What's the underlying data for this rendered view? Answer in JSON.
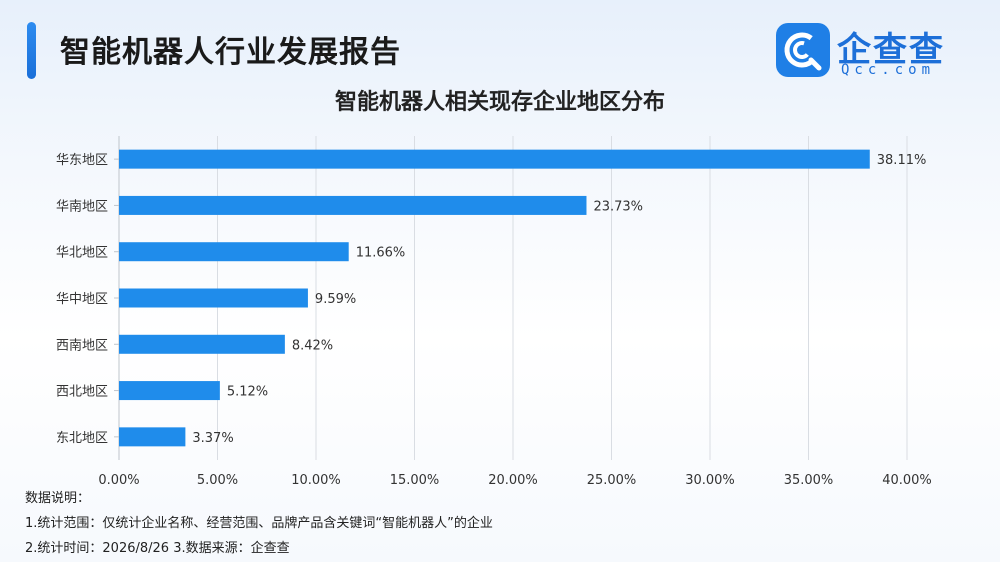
{
  "header": {
    "title": "智能机器人行业发展报告"
  },
  "logo": {
    "name": "企查查",
    "domain": "Qcc.com"
  },
  "chart_data": {
    "type": "bar",
    "orientation": "horizontal",
    "title": "智能机器人相关现存企业地区分布",
    "categories": [
      "华东地区",
      "华南地区",
      "华北地区",
      "华中地区",
      "西南地区",
      "西北地区",
      "东北地区"
    ],
    "values": [
      38.11,
      23.73,
      11.66,
      9.59,
      8.42,
      5.12,
      3.37
    ],
    "value_labels": [
      "38.11%",
      "23.73%",
      "11.66%",
      "9.59%",
      "8.42%",
      "5.12%",
      "3.37%"
    ],
    "xlim": [
      0,
      40
    ],
    "x_ticks": [
      0,
      5,
      10,
      15,
      20,
      25,
      30,
      35,
      40
    ],
    "x_tick_labels": [
      "0.00%",
      "5.00%",
      "10.00%",
      "15.00%",
      "20.00%",
      "25.00%",
      "30.00%",
      "35.00%",
      "40.00%"
    ],
    "grid": true,
    "bar_color": "#1f8ceb"
  },
  "notes": {
    "heading": "数据说明：",
    "line1": "1.统计范围：仅统计企业名称、经营范围、品牌产品含关键词“智能机器人”的企业",
    "line2": "2.统计时间：2026/8/26  3.数据来源：企查查"
  }
}
